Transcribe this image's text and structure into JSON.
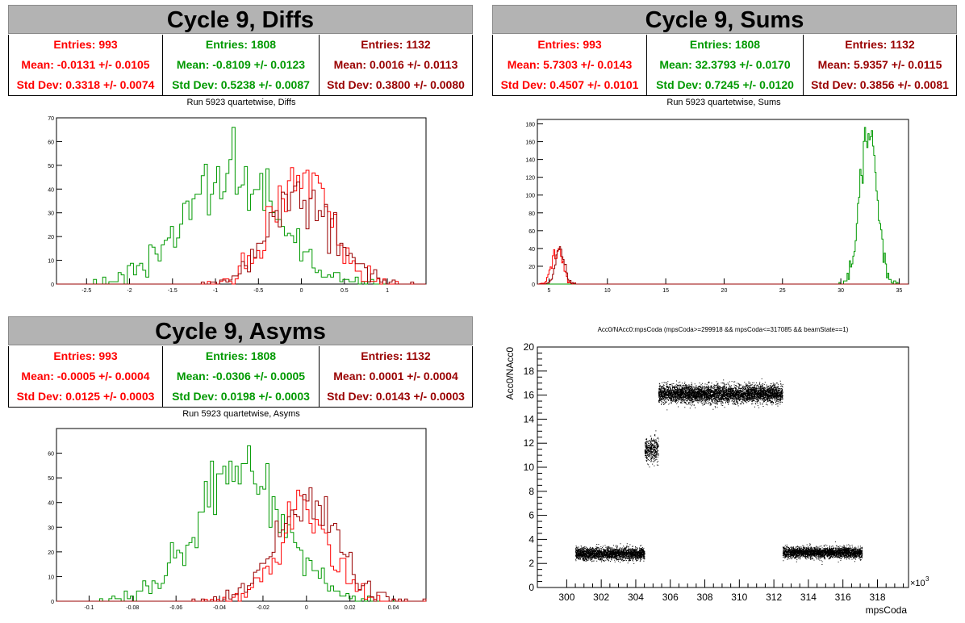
{
  "colors": {
    "red": "#ff0000",
    "green": "#009900",
    "darkred": "#990000",
    "frame_bg": "#b3b3b3"
  },
  "panels": {
    "diffs": {
      "title": "Cycle 9, Diffs",
      "subtitle": "Run 5923 quartetwise, Diffs",
      "stats": [
        {
          "entries": "Entries: 993",
          "mean": "Mean: -0.0131 +/- 0.0105",
          "std": "Std Dev: 0.3318 +/- 0.0074"
        },
        {
          "entries": "Entries: 1808",
          "mean": "Mean: -0.8109 +/- 0.0123",
          "std": "Std Dev: 0.5238 +/- 0.0087"
        },
        {
          "entries": "Entries: 1132",
          "mean": "Mean: 0.0016 +/- 0.0113",
          "std": "Std Dev: 0.3800 +/- 0.0080"
        }
      ]
    },
    "sums": {
      "title": "Cycle 9, Sums",
      "subtitle": "Run 5923 quartetwise, Sums",
      "stats": [
        {
          "entries": "Entries: 993",
          "mean": "Mean: 5.7303 +/- 0.0143",
          "std": "Std Dev: 0.4507 +/- 0.0101"
        },
        {
          "entries": "Entries: 1808",
          "mean": "Mean: 32.3793 +/- 0.0170",
          "std": "Std Dev: 0.7245 +/- 0.0120"
        },
        {
          "entries": "Entries: 1132",
          "mean": "Mean: 5.9357 +/- 0.0115",
          "std": "Std Dev: 0.3856 +/- 0.0081"
        }
      ]
    },
    "asyms": {
      "title": "Cycle 9, Asyms",
      "subtitle": "Run 5923 quartetwise, Asyms",
      "stats": [
        {
          "entries": "Entries: 993",
          "mean": "Mean: -0.0005 +/- 0.0004",
          "std": "Std Dev: 0.0125 +/- 0.0003"
        },
        {
          "entries": "Entries: 1808",
          "mean": "Mean: -0.0306 +/- 0.0005",
          "std": "Std Dev: 0.0198 +/- 0.0003"
        },
        {
          "entries": "Entries: 1132",
          "mean": "Mean: 0.0001 +/- 0.0004",
          "std": "Std Dev: 0.0143 +/- 0.0003"
        }
      ]
    }
  },
  "chart_data": [
    {
      "id": "diffs",
      "type": "histogram",
      "xlim": [
        -2.85,
        1.45
      ],
      "ylim": [
        0,
        70
      ],
      "xticks": [
        -2.5,
        -2,
        -1.5,
        -1,
        -0.5,
        0,
        0.5,
        1
      ],
      "xtick_labels": [
        "-2.5",
        "-2",
        "-1.5",
        "-1",
        "-0.5",
        "0",
        "0.5",
        "1"
      ],
      "yticks": [
        0,
        10,
        20,
        30,
        40,
        50,
        60,
        70
      ],
      "series": [
        {
          "color": "#009900",
          "mean": -0.8109,
          "sd": 0.5238,
          "entries": 1808,
          "peak": 66
        },
        {
          "color": "#ff0000",
          "mean": -0.0131,
          "sd": 0.3318,
          "entries": 993,
          "peak": 49
        },
        {
          "color": "#990000",
          "mean": 0.0016,
          "sd": 0.38,
          "entries": 1132,
          "peak": 43
        }
      ]
    },
    {
      "id": "sums",
      "type": "histogram",
      "xlim": [
        4,
        35.8
      ],
      "ylim": [
        0,
        185
      ],
      "xticks": [
        5,
        10,
        15,
        20,
        25,
        30,
        35
      ],
      "xtick_labels": [
        "5",
        "10",
        "15",
        "20",
        "25",
        "30",
        "35"
      ],
      "yticks": [
        0,
        20,
        40,
        60,
        80,
        100,
        120,
        140,
        160,
        180
      ],
      "series": [
        {
          "color": "#009900",
          "mean": 32.3793,
          "sd": 0.7245,
          "entries": 1808,
          "peak": 176
        },
        {
          "color": "#ff0000",
          "mean": 5.7303,
          "sd": 0.4507,
          "entries": 993,
          "peak": 40
        },
        {
          "color": "#990000",
          "mean": 5.9357,
          "sd": 0.3856,
          "entries": 1132,
          "peak": 42
        }
      ]
    },
    {
      "id": "asyms",
      "type": "histogram",
      "xlim": [
        -0.115,
        0.055
      ],
      "ylim": [
        0,
        70
      ],
      "xticks": [
        -0.1,
        -0.08,
        -0.06,
        -0.04,
        -0.02,
        0,
        0.02,
        0.04
      ],
      "xtick_labels": [
        "-0.1",
        "-0.08",
        "-0.06",
        "-0.04",
        "-0.02",
        "0",
        "0.02",
        "0.04"
      ],
      "yticks": [
        0,
        10,
        20,
        30,
        40,
        50,
        60
      ],
      "series": [
        {
          "color": "#009900",
          "mean": -0.0306,
          "sd": 0.0198,
          "entries": 1808,
          "peak": 63
        },
        {
          "color": "#ff0000",
          "mean": -0.0005,
          "sd": 0.0125,
          "entries": 993,
          "peak": 45
        },
        {
          "color": "#990000",
          "mean": 0.0001,
          "sd": 0.0143,
          "entries": 1132,
          "peak": 46
        }
      ]
    },
    {
      "id": "scatter",
      "type": "scatter",
      "title": "Acc0/NAcc0:mpsCoda (mpsCoda>=299918 && mpsCoda<=317085 && beamState==1)",
      "xlabel": "mpsCoda",
      "ylabel": "Acc0/NAcc0",
      "x_multiplier_label": "×10",
      "x_multiplier_exp": "3",
      "xlim": [
        298.3,
        319.8
      ],
      "ylim": [
        0,
        20
      ],
      "xticks": [
        300,
        302,
        304,
        306,
        308,
        310,
        312,
        314,
        316,
        318
      ],
      "xtick_labels": [
        "300",
        "302",
        "304",
        "306",
        "308",
        "310",
        "312",
        "314",
        "316",
        "318"
      ],
      "yticks": [
        0,
        2,
        4,
        6,
        8,
        10,
        12,
        14,
        16,
        18,
        20
      ],
      "ytick_labels": [
        "0",
        "2",
        "4",
        "6",
        "8",
        "10",
        "12",
        "14",
        "16",
        "18",
        "20"
      ],
      "clusters": [
        {
          "x": [
            300.5,
            304.5
          ],
          "y_center": 2.8,
          "y_spread": 0.45,
          "points": 2600
        },
        {
          "x": [
            304.5,
            305.3
          ],
          "y_center": 11.5,
          "y_spread": 0.9,
          "points": 420
        },
        {
          "x": [
            305.3,
            312.5
          ],
          "y_center": 16.1,
          "y_spread": 0.65,
          "points": 5200
        },
        {
          "x": [
            312.5,
            317.1
          ],
          "y_center": 2.9,
          "y_spread": 0.4,
          "points": 3000
        }
      ]
    }
  ]
}
